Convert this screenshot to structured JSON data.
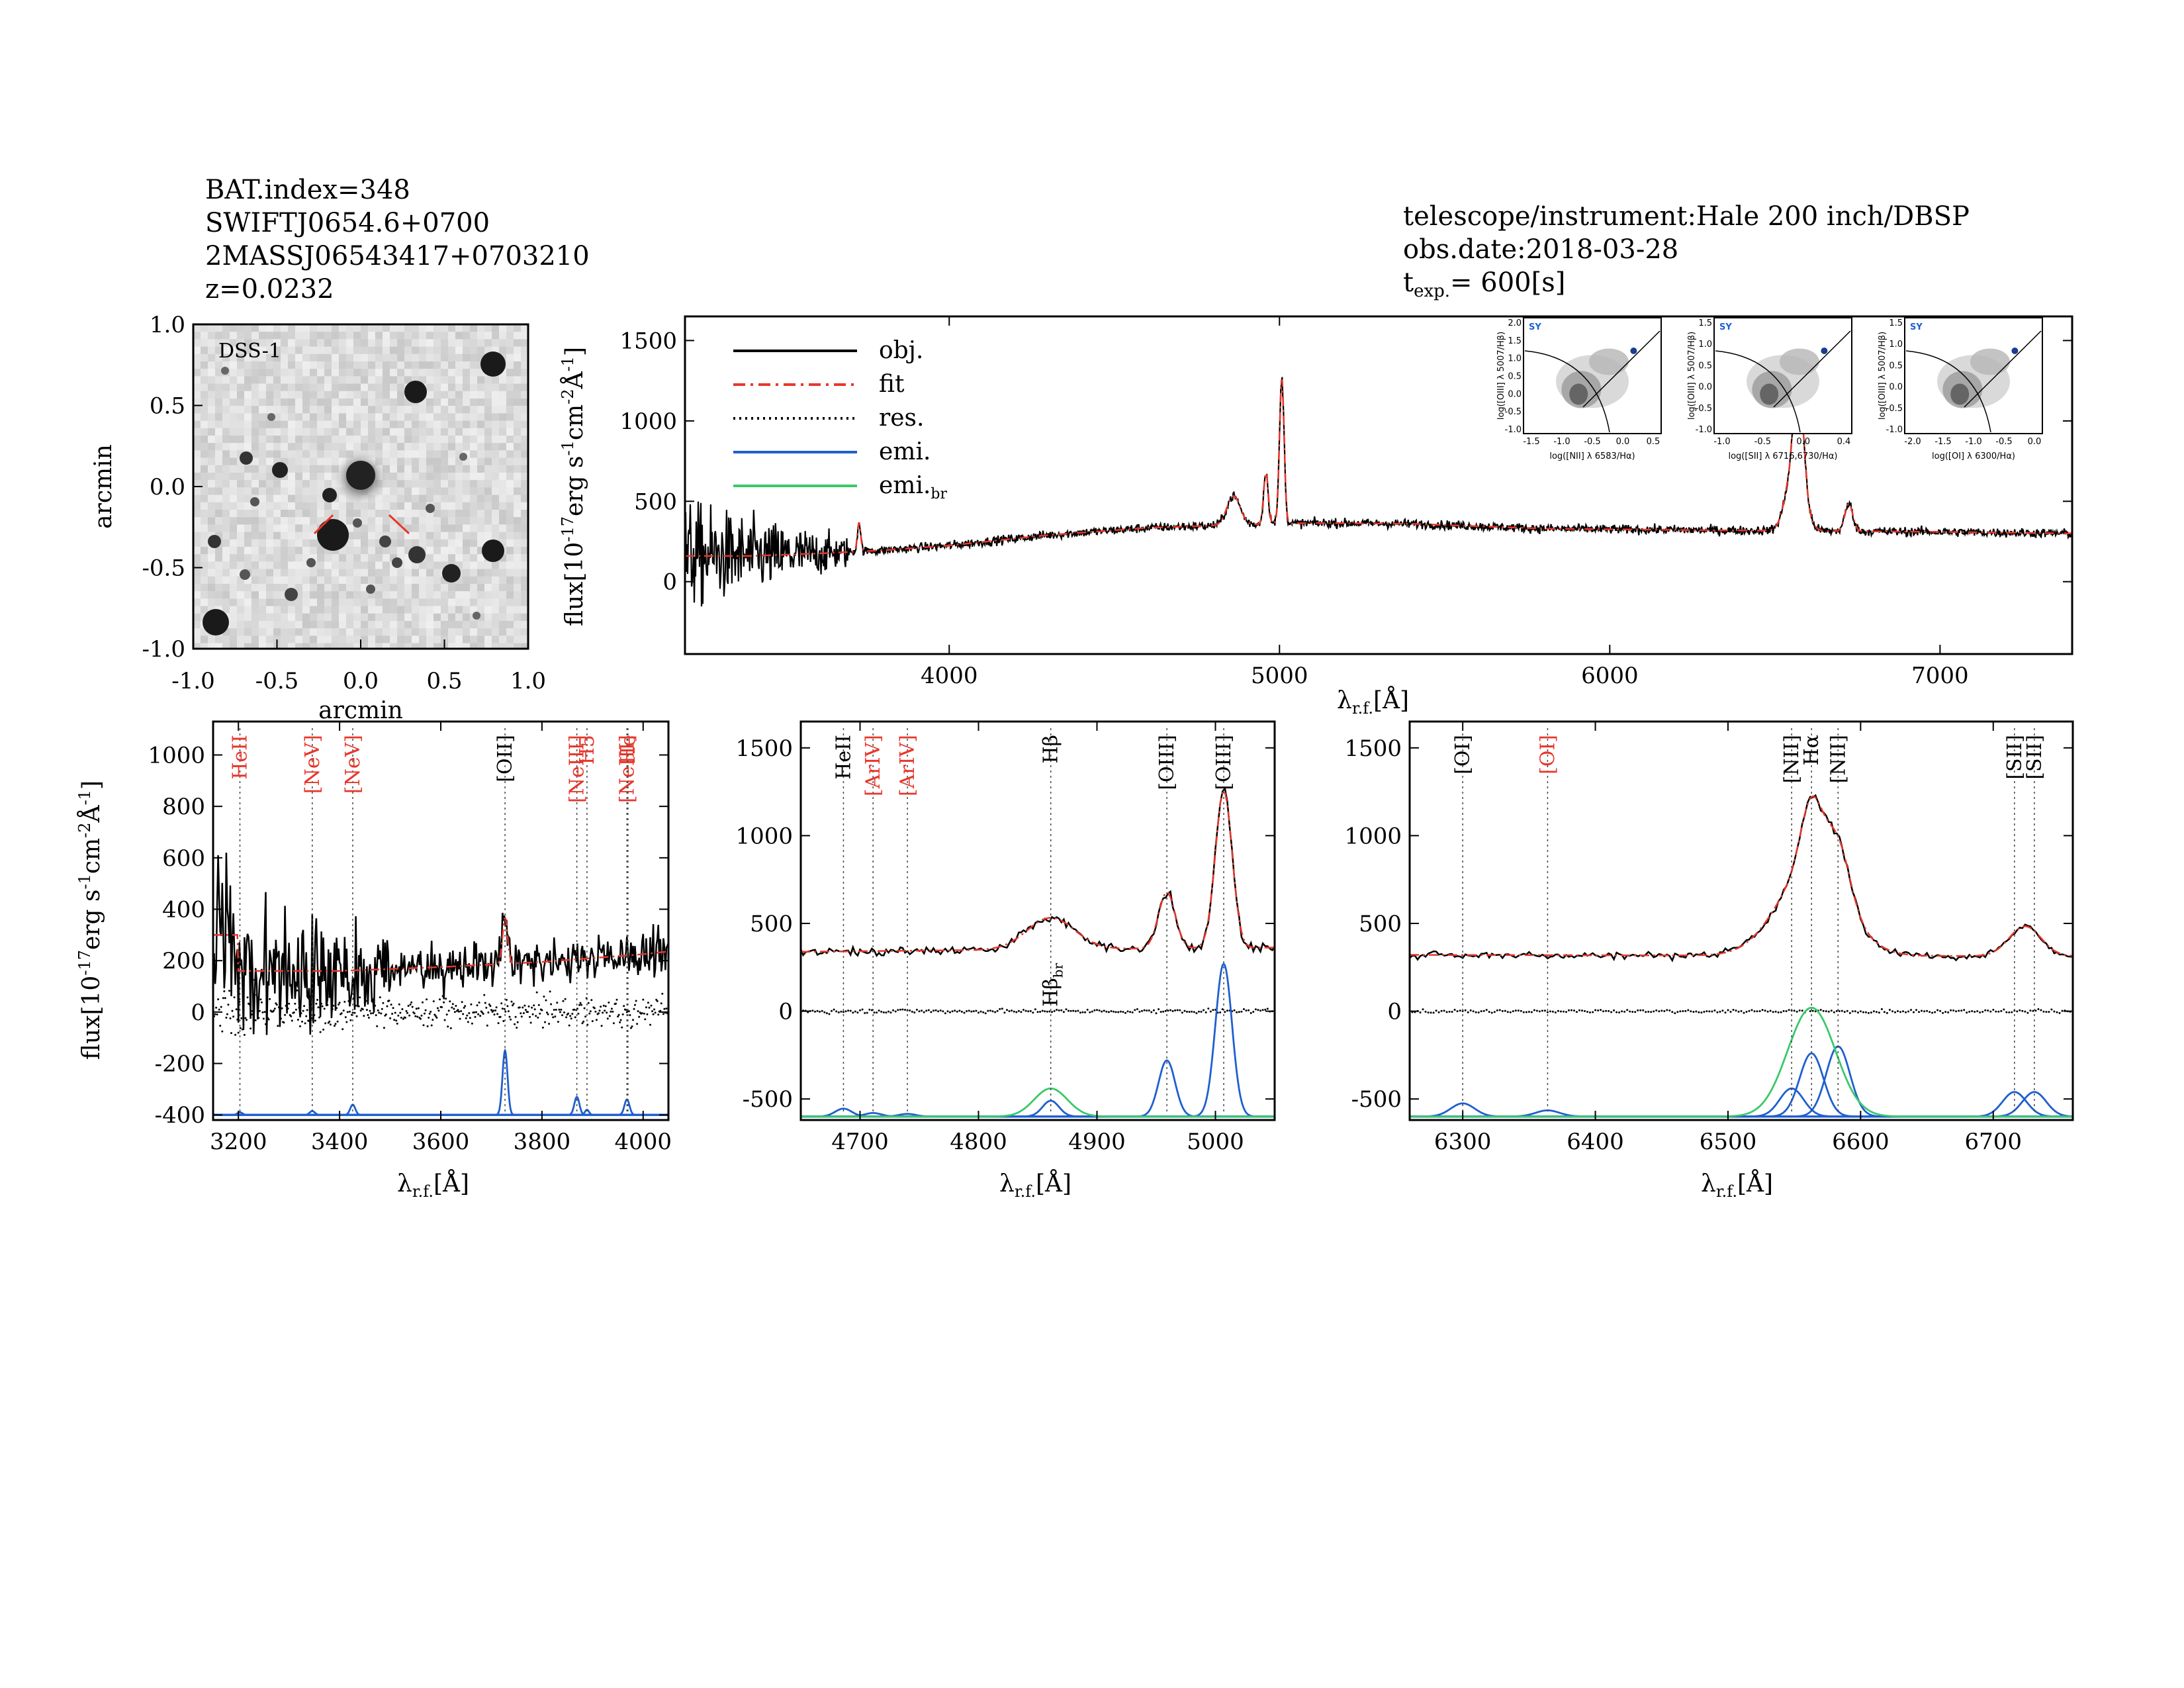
{
  "header": {
    "left": [
      "BAT.index=348",
      "SWIFTJ0654.6+0700",
      "2MASSJ06543417+0703210",
      "z=0.0232"
    ],
    "telescope": "telescope/instrument:Hale 200 inch/DBSP",
    "obs_date": "obs.date:2018-03-28",
    "texp_prefix": "t",
    "texp_sub": "exp.",
    "texp_value": "= 600[s]"
  },
  "image_panel": {
    "label": "DSS-1",
    "xlabel": "arcmin",
    "ylabel": "arcmin",
    "ticks": [
      "-1.0",
      "-0.5",
      "0.0",
      "0.5",
      "1.0"
    ]
  },
  "labels": {
    "flux_main": "flux[10",
    "flux_exp": "-17",
    "flux_units": "erg s",
    "flux_units_exp": "-1",
    "flux_cm": "cm",
    "flux_cm_exp": "-2",
    "flux_A": "Å",
    "flux_A_exp": "-1",
    "flux_end": "]",
    "lambda": "λ",
    "lambda_sub": "r.f.",
    "lambda_unit": "[Å]"
  },
  "colors": {
    "obj": "#000000",
    "fit": "#e8362b",
    "emi": "#1f5fd0",
    "emi_br": "#3ac86a"
  },
  "chart_data": [
    {
      "id": "main",
      "type": "line",
      "xlim": [
        3200,
        7400
      ],
      "ylim": [
        -450,
        1650
      ],
      "xticks": [
        "4000",
        "5000",
        "6000",
        "7000"
      ],
      "yticks": [
        "0",
        "500",
        "1000",
        "1500"
      ],
      "legend": [
        "obj.",
        "fit",
        "res.",
        "emi.",
        "emi.br"
      ],
      "legend_suffix": [
        "",
        "",
        "",
        "",
        "br"
      ],
      "continuum": [
        [
          3200,
          160
        ],
        [
          3400,
          160
        ],
        [
          3600,
          175
        ],
        [
          3800,
          195
        ],
        [
          4000,
          225
        ],
        [
          4300,
          290
        ],
        [
          4600,
          335
        ],
        [
          4900,
          355
        ],
        [
          5100,
          365
        ],
        [
          5400,
          360
        ],
        [
          5800,
          330
        ],
        [
          6300,
          320
        ],
        [
          7000,
          310
        ],
        [
          7400,
          300
        ]
      ],
      "lines": [
        {
          "name": "OII",
          "center": 3727,
          "amp": 180,
          "sigma": 5
        },
        {
          "name": "Hbeta_br",
          "center": 4861,
          "amp": 180,
          "sigma": 20
        },
        {
          "name": "OIII4959",
          "center": 4959,
          "amp": 320,
          "sigma": 7
        },
        {
          "name": "OIII5007",
          "center": 5007,
          "amp": 900,
          "sigma": 7
        },
        {
          "name": "Halpha_br",
          "center": 6563,
          "amp": 500,
          "sigma": 25
        },
        {
          "name": "Halpha",
          "center": 6563,
          "amp": 380,
          "sigma": 8
        },
        {
          "name": "NII6583",
          "center": 6583,
          "amp": 300,
          "sigma": 9
        },
        {
          "name": "SII",
          "center": 6724,
          "amp": 170,
          "sigma": 12
        }
      ],
      "noise_region": [
        3200,
        3700
      ],
      "insets": [
        {
          "title": "SY",
          "xlabel": "log([NII] λ 6583/Hα)",
          "ylabel": "log([OIII] λ 5007/Hβ)",
          "xticks": [
            "-1.5",
            "-1.0",
            "-0.5",
            "0.0",
            "0.5"
          ],
          "yticks": [
            "-1.0",
            "-0.5",
            "0.0",
            "0.5",
            "1.0",
            "1.5",
            "2.0"
          ],
          "point": [
            0.26,
            0.92
          ]
        },
        {
          "title": "SY",
          "xlabel": "log([SII] λ 6716,6730/Hα)",
          "ylabel": "log([OIII] λ 5007/Hβ)",
          "xticks": [
            "-1.0",
            "-0.5",
            "0.0",
            "0.4"
          ],
          "yticks": [
            "-1.0",
            "-0.5",
            "0.0",
            "0.5",
            "1.0",
            "1.5"
          ],
          "point": [
            0.0,
            1.1
          ]
        },
        {
          "title": "SY",
          "xlabel": "log([OI] λ 6300/Hα)",
          "ylabel": "log([OIII] λ 5007/Hβ)",
          "xticks": [
            "-2.0",
            "-1.5",
            "-1.0",
            "-0.5",
            "0.0"
          ],
          "yticks": [
            "-1.0",
            "-0.5",
            "0.0",
            "0.5",
            "1.0",
            "1.5"
          ],
          "point": [
            -0.45,
            1.15
          ]
        }
      ]
    },
    {
      "id": "blue",
      "type": "line",
      "xlim": [
        3150,
        4050
      ],
      "ylim": [
        -420,
        1130
      ],
      "xticks": [
        "3200",
        "3400",
        "3600",
        "3800",
        "4000"
      ],
      "yticks": [
        "-400",
        "-200",
        "0",
        "200",
        "400",
        "600",
        "800",
        "1000"
      ],
      "markers": [
        {
          "label": "HeII",
          "x": 3203,
          "color": "red"
        },
        {
          "label": "[NeV]",
          "x": 3346,
          "color": "red"
        },
        {
          "label": "[NeV]",
          "x": 3426,
          "color": "red"
        },
        {
          "label": "[OII]",
          "x": 3727,
          "color": "black"
        },
        {
          "label": "[NeIII]",
          "x": 3869,
          "color": "red"
        },
        {
          "label": "H5",
          "x": 3889,
          "color": "red"
        },
        {
          "label": "[NeIII]",
          "x": 3968,
          "color": "red"
        },
        {
          "label": "He",
          "x": 3970,
          "color": "red"
        }
      ],
      "emi": [
        {
          "center": 3203,
          "amp": 10,
          "sigma": 5
        },
        {
          "center": 3346,
          "amp": 15,
          "sigma": 5
        },
        {
          "center": 3426,
          "amp": 40,
          "sigma": 5
        },
        {
          "center": 3727,
          "amp": 250,
          "sigma": 5
        },
        {
          "center": 3869,
          "amp": 70,
          "sigma": 5
        },
        {
          "center": 3889,
          "amp": 20,
          "sigma": 4
        },
        {
          "center": 3968,
          "amp": 60,
          "sigma": 5
        }
      ],
      "emi_base": -400
    },
    {
      "id": "hbeta",
      "type": "line",
      "xlim": [
        4650,
        5050
      ],
      "ylim": [
        -620,
        1650
      ],
      "xticks": [
        "4700",
        "4800",
        "4900",
        "5000"
      ],
      "yticks": [
        "-500",
        "0",
        "500",
        "1000",
        "1500"
      ],
      "markers": [
        {
          "label": "HeII",
          "x": 4686,
          "color": "black"
        },
        {
          "label": "[ArIV]",
          "x": 4711,
          "color": "red"
        },
        {
          "label": "[ArIV]",
          "x": 4740,
          "color": "red"
        },
        {
          "label": "Hβ",
          "x": 4861,
          "color": "black"
        },
        {
          "label": "[OIII]",
          "x": 4959,
          "color": "black"
        },
        {
          "label": "[OIII]",
          "x": 5007,
          "color": "black"
        }
      ],
      "sub_marker": {
        "label": "Hβ",
        "sub": "br",
        "x": 4861
      },
      "emi": [
        {
          "center": 4686,
          "amp": 45,
          "sigma": 7
        },
        {
          "center": 4711,
          "amp": 20,
          "sigma": 7
        },
        {
          "center": 4740,
          "amp": 15,
          "sigma": 7
        },
        {
          "center": 4861,
          "amp": 90,
          "sigma": 7
        },
        {
          "center": 4959,
          "amp": 320,
          "sigma": 7
        },
        {
          "center": 5007,
          "amp": 870,
          "sigma": 7
        }
      ],
      "emi_br": [
        {
          "center": 4861,
          "amp": 160,
          "sigma": 14
        }
      ],
      "emi_base": -600
    },
    {
      "id": "halpha",
      "type": "line",
      "xlim": [
        6260,
        6760
      ],
      "ylim": [
        -620,
        1650
      ],
      "xticks": [
        "6300",
        "6400",
        "6500",
        "6600",
        "6700"
      ],
      "yticks": [
        "-500",
        "0",
        "500",
        "1000",
        "1500"
      ],
      "markers": [
        {
          "label": "[OI]",
          "x": 6300,
          "color": "black"
        },
        {
          "label": "[OI]",
          "x": 6364,
          "color": "red"
        },
        {
          "label": "[NII]",
          "x": 6548,
          "color": "black"
        },
        {
          "label": "Hα",
          "x": 6563,
          "color": "black"
        },
        {
          "label": "[NII]",
          "x": 6583,
          "color": "black"
        },
        {
          "label": "[SII]",
          "x": 6716,
          "color": "black"
        },
        {
          "label": "[SII]",
          "x": 6731,
          "color": "black"
        }
      ],
      "emi": [
        {
          "center": 6300,
          "amp": 75,
          "sigma": 9
        },
        {
          "center": 6364,
          "amp": 35,
          "sigma": 9
        },
        {
          "center": 6548,
          "amp": 160,
          "sigma": 9
        },
        {
          "center": 6563,
          "amp": 360,
          "sigma": 9
        },
        {
          "center": 6583,
          "amp": 400,
          "sigma": 9
        },
        {
          "center": 6716,
          "amp": 140,
          "sigma": 9
        },
        {
          "center": 6731,
          "amp": 140,
          "sigma": 9
        }
      ],
      "emi_br": [
        {
          "center": 6563,
          "amp": 620,
          "sigma": 18
        }
      ],
      "emi_base": -600
    }
  ]
}
